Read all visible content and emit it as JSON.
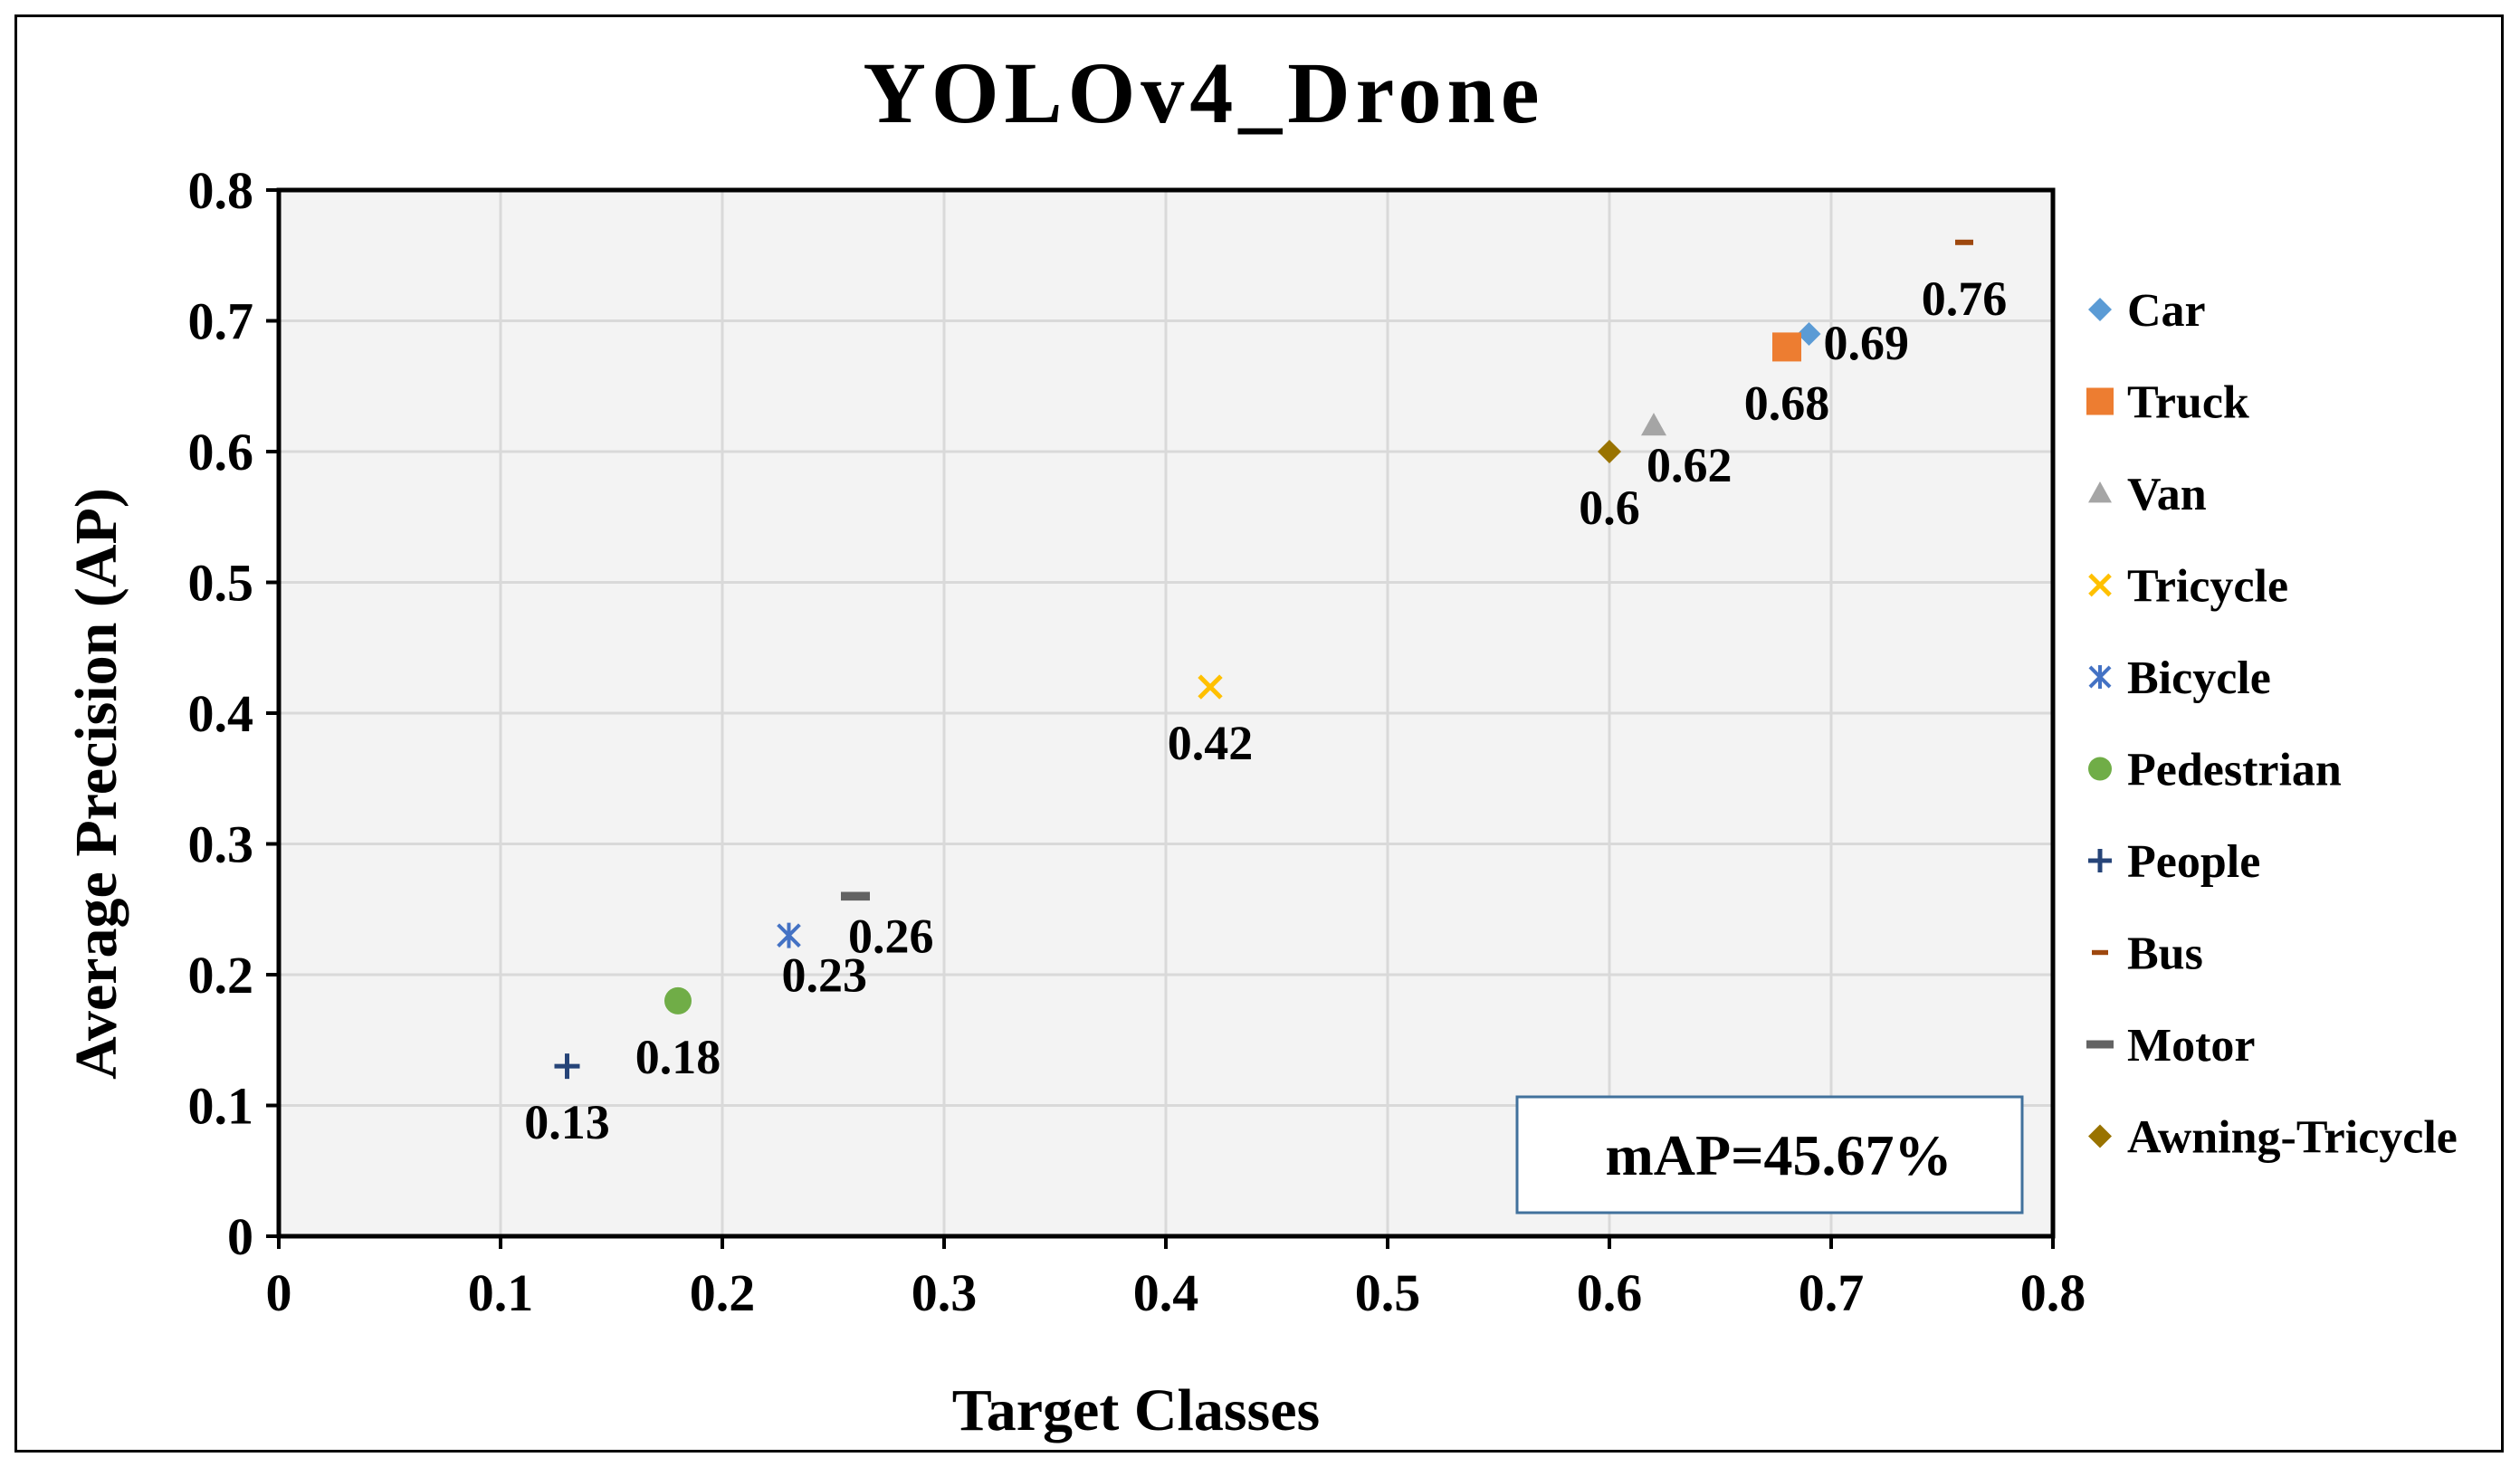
{
  "chart_data": {
    "type": "scatter",
    "title": "YOLOv4_Drone",
    "xlabel": "Target Classes",
    "ylabel": "Average Precision (AP)",
    "xlim": [
      0,
      0.8
    ],
    "ylim": [
      0,
      0.8
    ],
    "x_ticks": [
      "0",
      "0.1",
      "0.2",
      "0.3",
      "0.4",
      "0.5",
      "0.6",
      "0.7",
      "0.8"
    ],
    "y_ticks": [
      "0",
      "0.1",
      "0.2",
      "0.3",
      "0.4",
      "0.5",
      "0.6",
      "0.7",
      "0.8"
    ],
    "grid": true,
    "legend_position": "right",
    "annotation": "mAP=45.67%",
    "series": [
      {
        "name": "Car",
        "x": 0.69,
        "y": 0.69,
        "label": "0.69",
        "marker": "diamond",
        "color": "#5B9BD5",
        "label_side": "right"
      },
      {
        "name": "Truck",
        "x": 0.68,
        "y": 0.68,
        "label": "0.68",
        "marker": "square",
        "color": "#ED7D31",
        "label_side": "below"
      },
      {
        "name": "Van",
        "x": 0.62,
        "y": 0.62,
        "label": "0.62",
        "marker": "triangle",
        "color": "#A5A5A5",
        "label_side": "below-right"
      },
      {
        "name": "Tricycle",
        "x": 0.42,
        "y": 0.42,
        "label": "0.42",
        "marker": "x",
        "color": "#FFC000",
        "label_side": "below"
      },
      {
        "name": "Bicycle",
        "x": 0.23,
        "y": 0.23,
        "label": "0.23",
        "marker": "asterisk",
        "color": "#4472C4",
        "label_side": "below-right"
      },
      {
        "name": "Pedestrian",
        "x": 0.18,
        "y": 0.18,
        "label": "0.18",
        "marker": "circle",
        "color": "#70AD47",
        "label_side": "below"
      },
      {
        "name": "People",
        "x": 0.13,
        "y": 0.13,
        "label": "0.13",
        "marker": "plus",
        "color": "#264478",
        "label_side": "below"
      },
      {
        "name": "Bus",
        "x": 0.76,
        "y": 0.76,
        "label": "0.76",
        "marker": "dash",
        "color": "#9E480E",
        "label_side": "below"
      },
      {
        "name": "Motor",
        "x": 0.26,
        "y": 0.26,
        "label": "0.26",
        "marker": "dash",
        "color": "#636363",
        "label_side": "below-right"
      },
      {
        "name": "Awning-Tricycle",
        "x": 0.6,
        "y": 0.6,
        "label": "0.6",
        "marker": "diamond",
        "color": "#997300",
        "label_side": "below"
      }
    ]
  }
}
